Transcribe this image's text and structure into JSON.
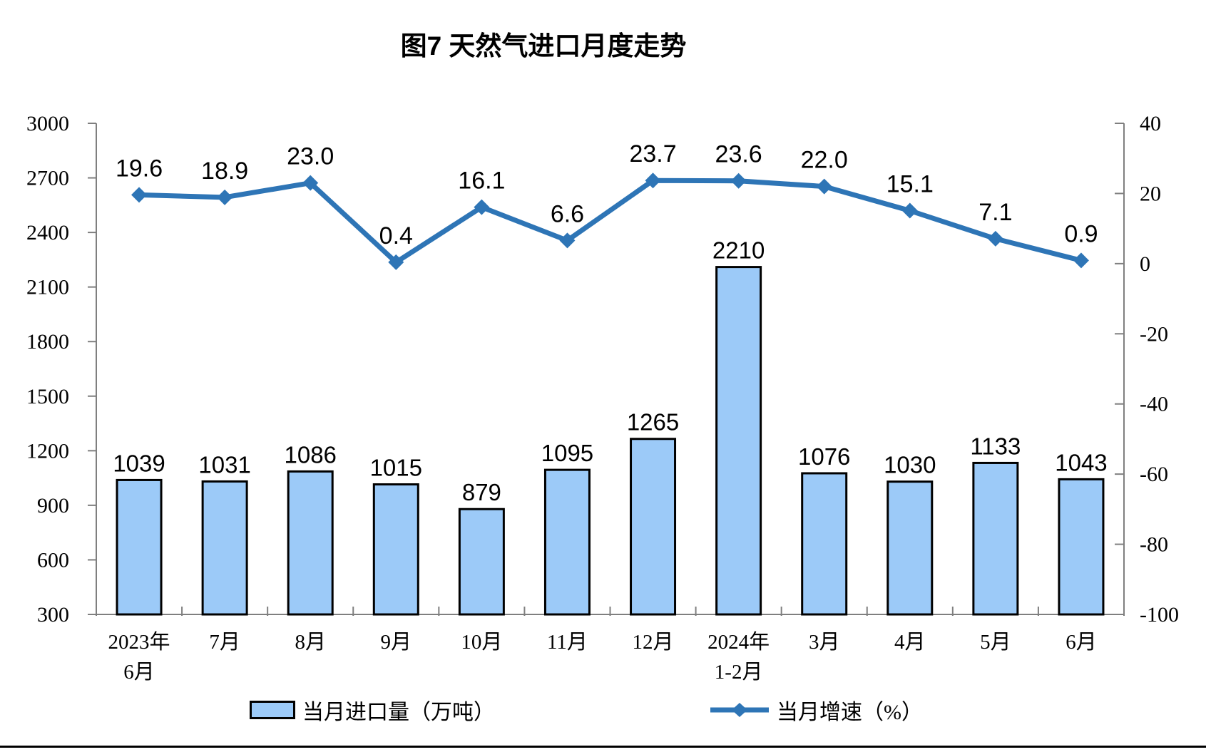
{
  "title": "图7 天然气进口月度走势",
  "chart_data": {
    "type": "bar",
    "title": "图7 天然气进口月度走势",
    "categories": [
      "2023年\n6月",
      "7月",
      "8月",
      "9月",
      "10月",
      "11月",
      "12月",
      "2024年\n1-2月",
      "3月",
      "4月",
      "5月",
      "6月"
    ],
    "series": [
      {
        "name": "当月进口量（万吨）",
        "type": "bar",
        "axis": "left",
        "values": [
          1039,
          1031,
          1086,
          1015,
          879,
          1095,
          1265,
          2210,
          1076,
          1030,
          1133,
          1043
        ],
        "labels": [
          "1039",
          "1031",
          "1086",
          "1015",
          "879",
          "1095",
          "1265",
          "2210",
          "1076",
          "1030",
          "1133",
          "1043"
        ],
        "fill": "#9CCAF8",
        "border": "#000000"
      },
      {
        "name": "当月增速（%）",
        "type": "line",
        "axis": "right",
        "values": [
          19.6,
          18.9,
          23.0,
          0.4,
          16.1,
          6.6,
          23.7,
          23.6,
          22.0,
          15.1,
          7.1,
          0.9
        ],
        "labels": [
          "19.6",
          "18.9",
          "23.0",
          "0.4",
          "16.1",
          "6.6",
          "23.7",
          "23.6",
          "22.0",
          "15.1",
          "7.1",
          "0.9"
        ],
        "color": "#2E75B6",
        "marker": "diamond"
      }
    ],
    "left_axis": {
      "min": 300,
      "max": 3000,
      "step": 300,
      "tick_labels": [
        "300",
        "600",
        "900",
        "1200",
        "1500",
        "1800",
        "2100",
        "2400",
        "2700",
        "3000"
      ]
    },
    "right_axis": {
      "min": -100,
      "max": 40,
      "step": 20,
      "tick_labels": [
        "-100",
        "-80",
        "-60",
        "-40",
        "-20",
        "0",
        "20",
        "40"
      ]
    },
    "axis_color": "#7F7F7F",
    "grid": false,
    "legend_position": "bottom"
  }
}
